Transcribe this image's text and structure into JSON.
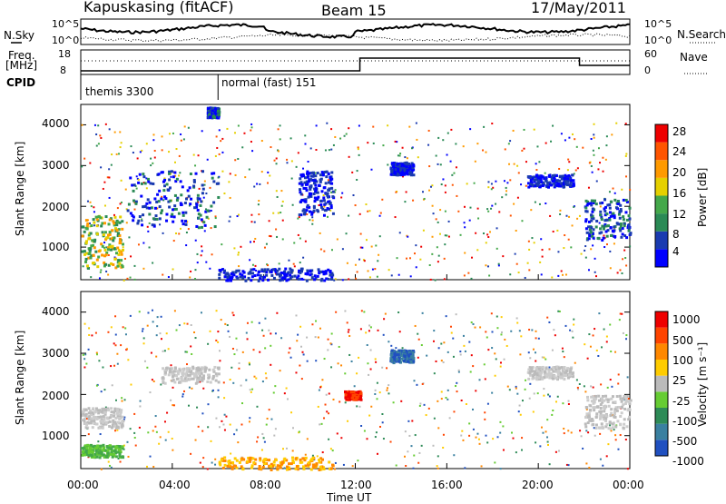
{
  "header": {
    "station": "Kapuskasing (fitACF)",
    "beam": "Beam 15",
    "date": "17/May/2011"
  },
  "summary_panels": {
    "nsky_label": "N.Sky",
    "nsearch_label": "N.Search",
    "noise_ticks": [
      "10^5",
      "10^0"
    ],
    "freq_label": "Freq.",
    "freq_unit": "[MHz]",
    "freq_ticks": [
      "18",
      "8"
    ],
    "nave_label": "Nave",
    "nave_ticks": [
      "60",
      "0"
    ],
    "cpid_label": "CPID",
    "cpid_segments": [
      {
        "name": "themis 3300",
        "start_h": 0,
        "end_h": 6
      },
      {
        "name": "normal (fast) 151",
        "start_h": 6,
        "end_h": 24
      }
    ]
  },
  "chart_data": [
    {
      "type": "heatmap",
      "id": "power",
      "xlabel": "",
      "ylabel": "Slant Range [km]",
      "xlim": [
        0,
        24
      ],
      "ylim": [
        200,
        4500
      ],
      "yticks": [
        1000,
        2000,
        3000,
        4000
      ],
      "colorbar": {
        "label": "Power [dB]",
        "ticks": [
          "28",
          "24",
          "20",
          "16",
          "12",
          "8",
          "4"
        ],
        "colors": [
          "#0000ff",
          "#1a3bb0",
          "#2a8a55",
          "#44a84a",
          "#e5d000",
          "#ff9a00",
          "#ff5500",
          "#ee0000"
        ]
      },
      "echo_regions": [
        {
          "t0": 0.0,
          "t1": 1.8,
          "r0": 500,
          "r1": 1800,
          "level": "high"
        },
        {
          "t0": 2.0,
          "t1": 6.0,
          "r0": 1500,
          "r1": 2900,
          "level": "medium"
        },
        {
          "t0": 5.5,
          "t1": 6.0,
          "r0": 4200,
          "r1": 4450,
          "level": "medium"
        },
        {
          "t0": 6.0,
          "t1": 11.0,
          "r0": 200,
          "r1": 500,
          "level": "low"
        },
        {
          "t0": 9.5,
          "t1": 11.0,
          "r0": 1800,
          "r1": 2900,
          "level": "low"
        },
        {
          "t0": 13.5,
          "t1": 14.5,
          "r0": 2800,
          "r1": 3100,
          "level": "low"
        },
        {
          "t0": 19.5,
          "t1": 21.5,
          "r0": 2500,
          "r1": 2800,
          "level": "low"
        },
        {
          "t0": 22.0,
          "t1": 24.0,
          "r0": 1200,
          "r1": 2200,
          "level": "medium"
        }
      ]
    },
    {
      "type": "heatmap",
      "id": "velocity",
      "xlabel": "Time UT",
      "ylabel": "Slant Range [km]",
      "xlim": [
        0,
        24
      ],
      "ylim": [
        200,
        4500
      ],
      "xticks": [
        "00:00",
        "04:00",
        "08:00",
        "12:00",
        "16:00",
        "20:00",
        "00:00"
      ],
      "yticks": [
        1000,
        2000,
        3000,
        4000
      ],
      "colorbar": {
        "label": "Velocity [m s⁻¹]",
        "ticks": [
          "1000",
          "500",
          "100",
          "25",
          "-25",
          "-100",
          "-500",
          "-1000"
        ],
        "colors": [
          "#2050c0",
          "#3a80a0",
          "#2e8b57",
          "#66cc33",
          "#bbbbbb",
          "#ffcc00",
          "#ff8800",
          "#ff4400",
          "#ee0000"
        ]
      },
      "echo_regions": [
        {
          "t0": 0.0,
          "t1": 1.8,
          "r0": 500,
          "r1": 800,
          "level": "green"
        },
        {
          "t0": 0.0,
          "t1": 1.8,
          "r0": 1200,
          "r1": 1700,
          "level": "gray"
        },
        {
          "t0": 3.5,
          "t1": 6.0,
          "r0": 2300,
          "r1": 2700,
          "level": "gray"
        },
        {
          "t0": 6.0,
          "t1": 11.0,
          "r0": 200,
          "r1": 500,
          "level": "orange"
        },
        {
          "t0": 11.5,
          "t1": 12.2,
          "r0": 1900,
          "r1": 2100,
          "level": "red"
        },
        {
          "t0": 13.5,
          "t1": 14.5,
          "r0": 2800,
          "r1": 3100,
          "level": "blue"
        },
        {
          "t0": 19.5,
          "t1": 21.5,
          "r0": 2400,
          "r1": 2700,
          "level": "gray"
        },
        {
          "t0": 22.0,
          "t1": 24.0,
          "r0": 1200,
          "r1": 2000,
          "level": "gray"
        }
      ]
    }
  ]
}
